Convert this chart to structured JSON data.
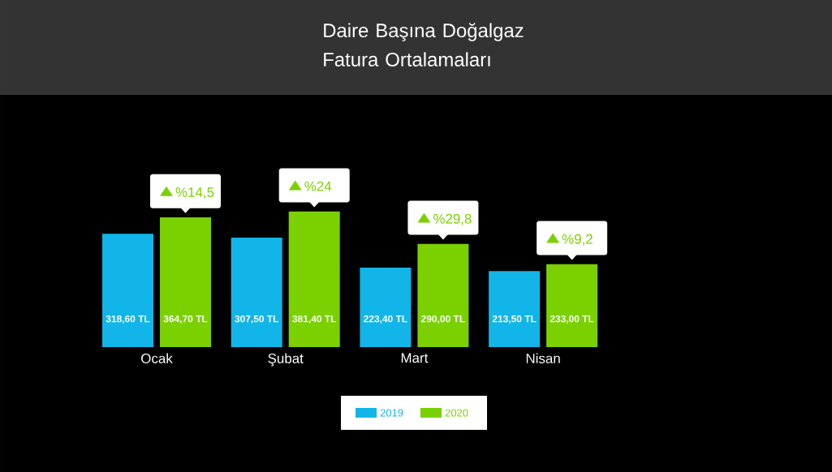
{
  "chart_data": {
    "type": "bar",
    "title": "Daire Başına Doğalgaz Fatura Ortalamaları",
    "categories": [
      "Ocak",
      "Şubat",
      "Mart",
      "Nisan"
    ],
    "series": [
      {
        "name": "2019",
        "color": "#12b5e8",
        "values": [
          318.6,
          307.5,
          223.4,
          213.5
        ],
        "value_labels": [
          "318,60 TL",
          "307,50 TL",
          "223,40 TL",
          "213,50 TL"
        ]
      },
      {
        "name": "2020",
        "color": "#7bd000",
        "values": [
          364.7,
          381.4,
          290.0,
          233.0
        ],
        "value_labels": [
          "364,70 TL",
          "381,40 TL",
          "290,00 TL",
          "233,00 TL"
        ]
      }
    ],
    "annotations": [
      {
        "text": "%14,5",
        "x": "Ocak",
        "y": 364.7
      },
      {
        "text": "%24",
        "x": "Şubat",
        "y": 381.4
      },
      {
        "text": "%29,8",
        "x": "Mart",
        "y": 290.0
      },
      {
        "text": "%9,2",
        "x": "Nisan",
        "y": 233.0
      }
    ],
    "legend": "bottom"
  }
}
